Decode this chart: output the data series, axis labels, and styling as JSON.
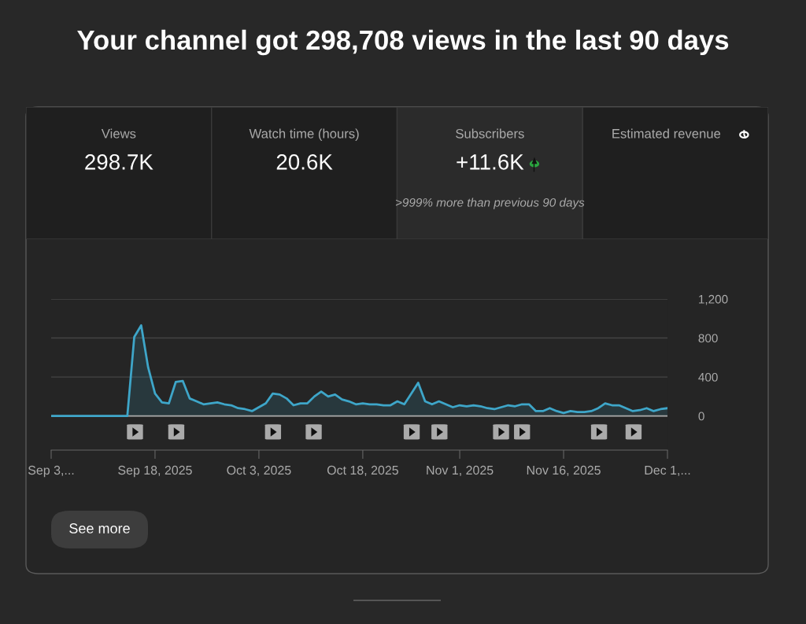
{
  "chart_data": [
    {
      "type": "other",
      "title": "Your channel got 298,708 views in the last 90 days",
      "categories": [
        "Views",
        "Watch time (hours)",
        "Subscribers",
        "Estimated revenue"
      ],
      "value_labels": [
        "298.7K",
        "20.6K",
        "+11.6K",
        null
      ],
      "annotations": [
        ">999% more than previous 90 days"
      ]
    },
    {
      "type": "area",
      "color": "#3ea6c9",
      "x": [
        "2025-09-03",
        "2025-09-04",
        "2025-09-05",
        "2025-09-06",
        "2025-09-07",
        "2025-09-08",
        "2025-09-09",
        "2025-09-10",
        "2025-09-11",
        "2025-09-12",
        "2025-09-13",
        "2025-09-14",
        "2025-09-15",
        "2025-09-16",
        "2025-09-17",
        "2025-09-18",
        "2025-09-19",
        "2025-09-20",
        "2025-09-21",
        "2025-09-22",
        "2025-09-23",
        "2025-09-24",
        "2025-09-25",
        "2025-09-26",
        "2025-09-27",
        "2025-09-28",
        "2025-09-29",
        "2025-09-30",
        "2025-10-01",
        "2025-10-02",
        "2025-10-03",
        "2025-10-04",
        "2025-10-05",
        "2025-10-06",
        "2025-10-07",
        "2025-10-08",
        "2025-10-09",
        "2025-10-10",
        "2025-10-11",
        "2025-10-12",
        "2025-10-13",
        "2025-10-14",
        "2025-10-15",
        "2025-10-16",
        "2025-10-17",
        "2025-10-18",
        "2025-10-19",
        "2025-10-20",
        "2025-10-21",
        "2025-10-22",
        "2025-10-23",
        "2025-10-24",
        "2025-10-25",
        "2025-10-26",
        "2025-10-27",
        "2025-10-28",
        "2025-10-29",
        "2025-10-30",
        "2025-10-31",
        "2025-11-01",
        "2025-11-02",
        "2025-11-03",
        "2025-11-04",
        "2025-11-05",
        "2025-11-06",
        "2025-11-07",
        "2025-11-08",
        "2025-11-09",
        "2025-11-10",
        "2025-11-11",
        "2025-11-12",
        "2025-11-13",
        "2025-11-14",
        "2025-11-15",
        "2025-11-16",
        "2025-11-17",
        "2025-11-18",
        "2025-11-19",
        "2025-11-20",
        "2025-11-21",
        "2025-11-22",
        "2025-11-23",
        "2025-11-24",
        "2025-11-25",
        "2025-11-26",
        "2025-11-27",
        "2025-11-28",
        "2025-11-29",
        "2025-11-30",
        "2025-12-01"
      ],
      "values": [
        0,
        0,
        0,
        0,
        0,
        0,
        0,
        0,
        0,
        0,
        0,
        0,
        810,
        930,
        500,
        230,
        140,
        130,
        350,
        360,
        180,
        150,
        120,
        130,
        140,
        120,
        110,
        80,
        70,
        50,
        90,
        130,
        230,
        220,
        180,
        110,
        130,
        130,
        200,
        250,
        200,
        220,
        170,
        150,
        120,
        130,
        120,
        120,
        110,
        110,
        150,
        120,
        230,
        340,
        150,
        120,
        150,
        120,
        90,
        110,
        100,
        110,
        100,
        80,
        70,
        90,
        110,
        100,
        120,
        120,
        50,
        50,
        80,
        50,
        30,
        50,
        40,
        40,
        50,
        80,
        130,
        110,
        110,
        80,
        50,
        60,
        80,
        50,
        70,
        80
      ],
      "xlim": [
        "2025-09-03",
        "2025-12-01"
      ],
      "xticks": [
        {
          "value": "2025-09-03",
          "label": "Sep 3,..."
        },
        {
          "value": "2025-09-18",
          "label": "Sep 18, 2025"
        },
        {
          "value": "2025-10-03",
          "label": "Oct 3, 2025"
        },
        {
          "value": "2025-10-18",
          "label": "Oct 18, 2025"
        },
        {
          "value": "2025-11-01",
          "label": "Nov 1, 2025"
        },
        {
          "value": "2025-11-16",
          "label": "Nov 16, 2025"
        },
        {
          "value": "2025-12-01",
          "label": "Dec 1,..."
        }
      ],
      "ylim": [
        -350,
        1200
      ],
      "yticks": [
        0,
        400,
        800,
        {
          "value": 1200,
          "label": "1,200"
        }
      ],
      "grid": "y",
      "annotations": [
        "See more"
      ]
    }
  ]
}
